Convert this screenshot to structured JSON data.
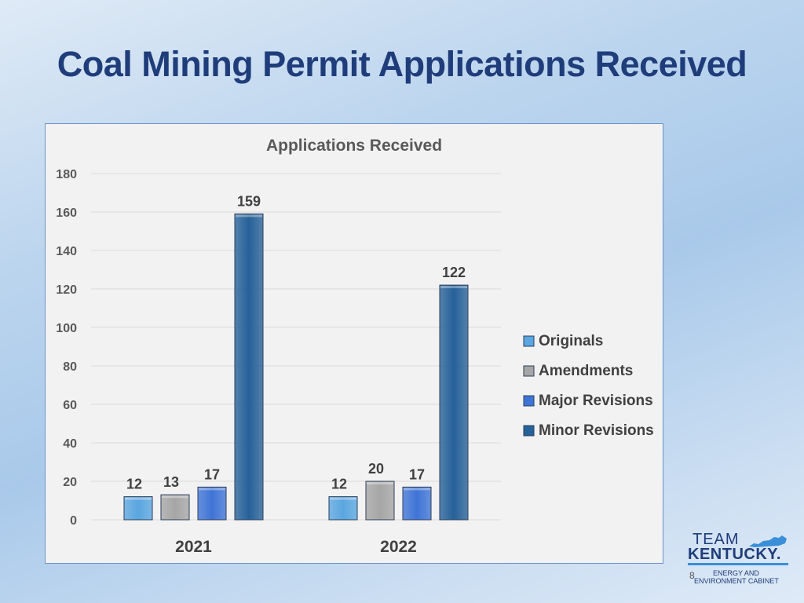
{
  "slide": {
    "title": "Coal Mining Permit Applications Received",
    "page_number": "8"
  },
  "logo": {
    "line1": "TEAM",
    "line2": "KENTUCKY.",
    "line3": "ENERGY AND",
    "line4": "ENVIRONMENT CABINET"
  },
  "colors": {
    "title": "#1f3d7a",
    "originals": "#5aa6e0",
    "amendments": "#a6a6a6",
    "major_revisions": "#3f74d6",
    "minor_revisions": "#266199"
  },
  "chart_data": {
    "type": "bar",
    "title": "Applications Received",
    "categories": [
      "2021",
      "2022"
    ],
    "series": [
      {
        "name": "Originals",
        "values": [
          12,
          12
        ]
      },
      {
        "name": "Amendments",
        "values": [
          13,
          20
        ]
      },
      {
        "name": "Major Revisions",
        "values": [
          17,
          17
        ]
      },
      {
        "name": "Minor Revisions",
        "values": [
          159,
          122
        ]
      }
    ],
    "ylim": [
      0,
      180
    ],
    "yticks": [
      0,
      20,
      40,
      60,
      80,
      100,
      120,
      140,
      160,
      180
    ],
    "grid": true,
    "legend": "right",
    "data_labels": true
  }
}
